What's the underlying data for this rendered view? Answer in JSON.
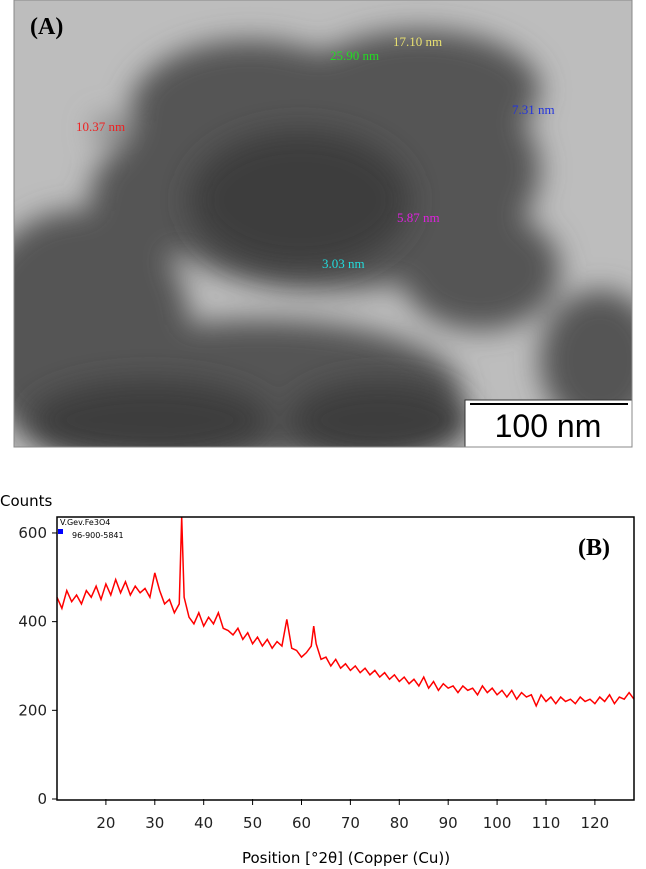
{
  "panel_a": {
    "label": "(A)",
    "measurements": [
      "25.90 nm",
      "17.10 nm",
      "10.37 nm",
      "7.31 nm",
      "5.87 nm",
      "3.03 nm"
    ],
    "scale_bar": "100 nm"
  },
  "chart_data": {
    "type": "line",
    "label": "(B)",
    "y_label": "Counts",
    "x_label": "Position [°2θ] (Copper (Cu))",
    "legend": [
      "V.Gev.Fe3O4",
      "96-900-5841"
    ],
    "x": [
      10,
      11,
      12,
      13,
      14,
      15,
      16,
      17,
      18,
      19,
      20,
      21,
      22,
      23,
      24,
      25,
      26,
      27,
      28,
      29,
      30,
      31,
      32,
      33,
      34,
      35,
      35.5,
      36,
      37,
      38,
      39,
      40,
      41,
      42,
      43,
      44,
      45,
      46,
      47,
      48,
      49,
      50,
      51,
      52,
      53,
      54,
      55,
      56,
      57,
      58,
      59,
      60,
      61,
      62,
      62.5,
      63,
      64,
      65,
      66,
      67,
      68,
      69,
      70,
      71,
      72,
      73,
      74,
      75,
      76,
      77,
      78,
      79,
      80,
      81,
      82,
      83,
      84,
      85,
      86,
      87,
      88,
      89,
      90,
      91,
      92,
      93,
      94,
      95,
      96,
      97,
      98,
      99,
      100,
      101,
      102,
      103,
      104,
      105,
      106,
      107,
      108,
      109,
      110,
      111,
      112,
      113,
      114,
      115,
      116,
      117,
      118,
      119,
      120,
      121,
      122,
      123,
      124,
      125,
      126,
      127,
      128
    ],
    "series": [
      {
        "name": "V.Gev.Fe3O4",
        "color": "#ff0000",
        "values": [
          455,
          430,
          470,
          445,
          460,
          440,
          470,
          455,
          480,
          450,
          485,
          460,
          495,
          465,
          490,
          460,
          480,
          465,
          475,
          455,
          510,
          470,
          440,
          450,
          420,
          440,
          636,
          455,
          410,
          395,
          420,
          390,
          410,
          395,
          420,
          385,
          380,
          370,
          385,
          360,
          375,
          350,
          365,
          345,
          360,
          340,
          355,
          345,
          405,
          340,
          335,
          320,
          330,
          345,
          390,
          350,
          315,
          320,
          300,
          315,
          295,
          305,
          290,
          300,
          285,
          295,
          280,
          290,
          275,
          285,
          270,
          280,
          265,
          275,
          260,
          270,
          255,
          275,
          250,
          265,
          245,
          260,
          250,
          255,
          240,
          255,
          245,
          250,
          235,
          255,
          240,
          250,
          235,
          245,
          230,
          245,
          225,
          240,
          230,
          235,
          210,
          235,
          220,
          230,
          215,
          230,
          220,
          225,
          215,
          230,
          220,
          225,
          215,
          230,
          220,
          235,
          215,
          230,
          225,
          240,
          225
        ]
      }
    ],
    "xlim": [
      10,
      128
    ],
    "ylim": [
      0,
      636
    ],
    "xticks": [
      20,
      30,
      40,
      50,
      60,
      70,
      80,
      90,
      100,
      110,
      120
    ],
    "yticks": [
      0,
      200,
      400,
      600
    ]
  }
}
